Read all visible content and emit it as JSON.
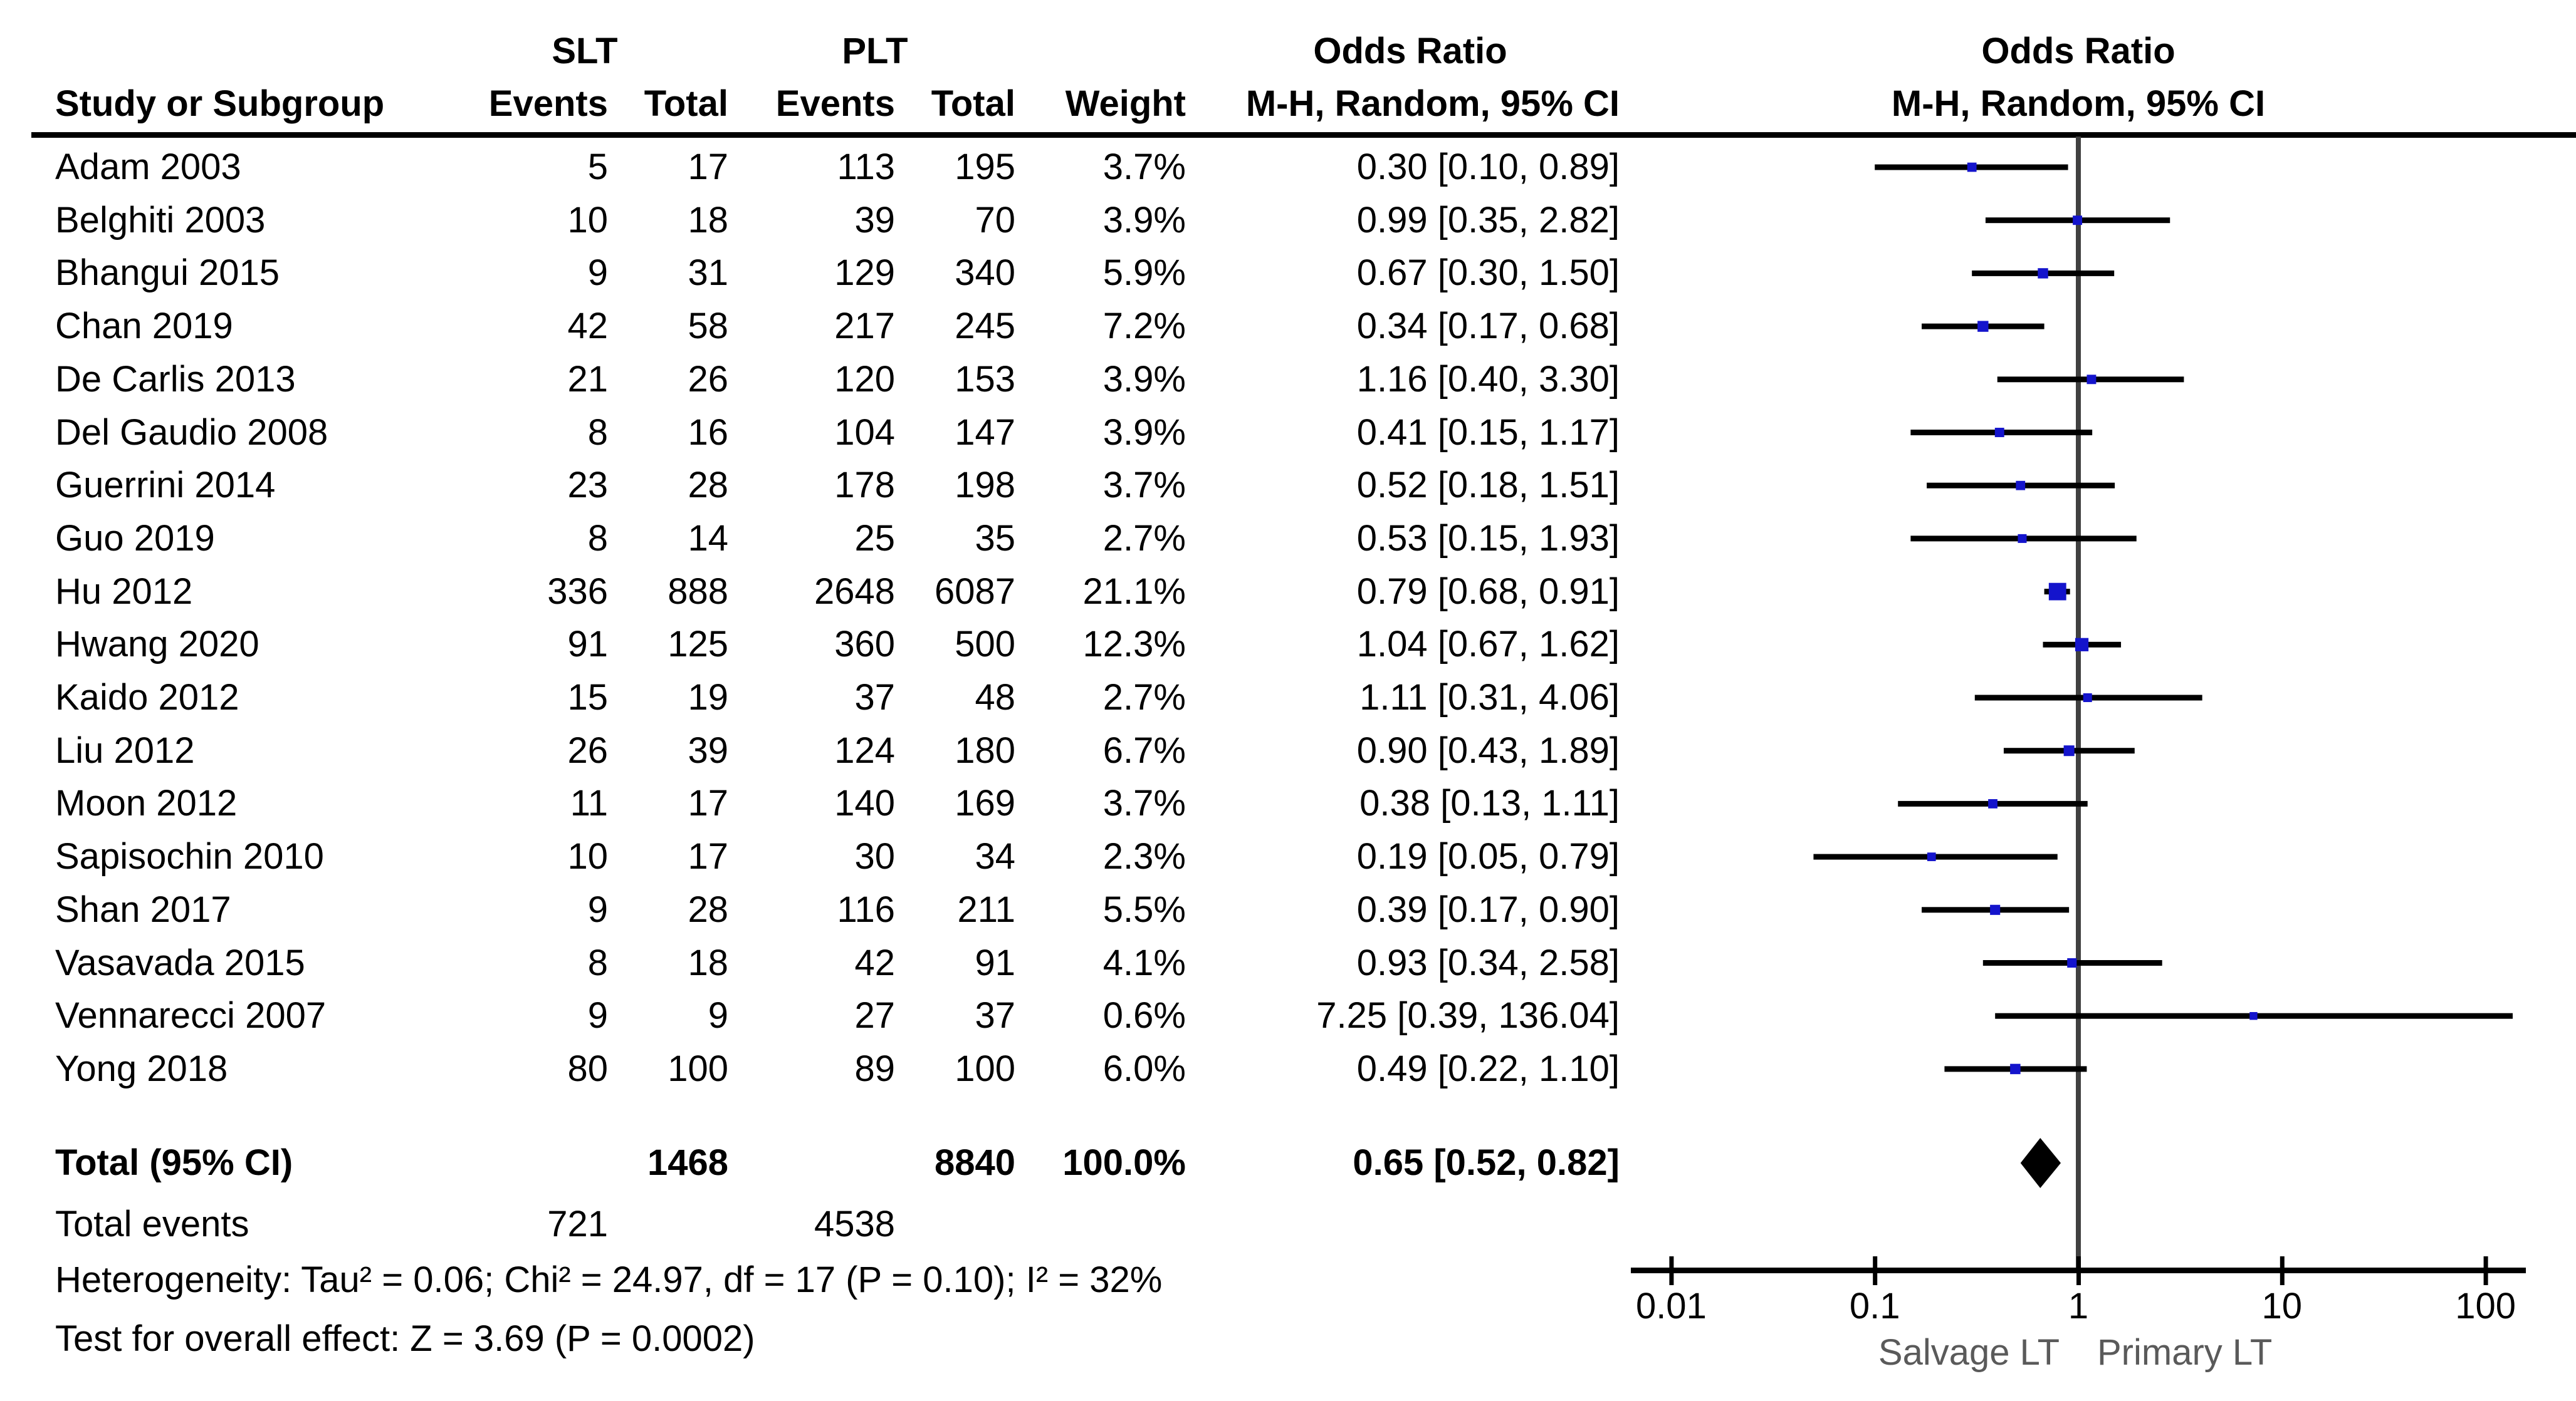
{
  "header": {
    "study_col": "Study or Subgroup",
    "group1": "SLT",
    "group2": "PLT",
    "events": "Events",
    "total": "Total",
    "weight": "Weight",
    "or_title": "Odds Ratio",
    "or_method": "M-H, Random, 95% CI",
    "plot_title": "Odds Ratio",
    "plot_method": "M-H, Random, 95% CI"
  },
  "colors": {
    "marker_blue": "#1414CC",
    "ci_line": "#000000",
    "diamond": "#000000",
    "axis_line": "#000000",
    "center_line": "#404040",
    "axis_label_gray": "#5a5a5a"
  },
  "studies": [
    {
      "name": "Adam 2003",
      "slt_events": "5",
      "slt_total": "17",
      "plt_events": "113",
      "plt_total": "195",
      "weight": "3.7%",
      "or_ci": "0.30 [0.10, 0.89]",
      "or": 0.3,
      "lo": 0.1,
      "hi": 0.89,
      "w": 3.7
    },
    {
      "name": "Belghiti 2003",
      "slt_events": "10",
      "slt_total": "18",
      "plt_events": "39",
      "plt_total": "70",
      "weight": "3.9%",
      "or_ci": "0.99 [0.35, 2.82]",
      "or": 0.99,
      "lo": 0.35,
      "hi": 2.82,
      "w": 3.9
    },
    {
      "name": "Bhangui 2015",
      "slt_events": "9",
      "slt_total": "31",
      "plt_events": "129",
      "plt_total": "340",
      "weight": "5.9%",
      "or_ci": "0.67 [0.30, 1.50]",
      "or": 0.67,
      "lo": 0.3,
      "hi": 1.5,
      "w": 5.9
    },
    {
      "name": "Chan 2019",
      "slt_events": "42",
      "slt_total": "58",
      "plt_events": "217",
      "plt_total": "245",
      "weight": "7.2%",
      "or_ci": "0.34 [0.17, 0.68]",
      "or": 0.34,
      "lo": 0.17,
      "hi": 0.68,
      "w": 7.2
    },
    {
      "name": "De Carlis 2013",
      "slt_events": "21",
      "slt_total": "26",
      "plt_events": "120",
      "plt_total": "153",
      "weight": "3.9%",
      "or_ci": "1.16 [0.40, 3.30]",
      "or": 1.16,
      "lo": 0.4,
      "hi": 3.3,
      "w": 3.9
    },
    {
      "name": "Del Gaudio 2008",
      "slt_events": "8",
      "slt_total": "16",
      "plt_events": "104",
      "plt_total": "147",
      "weight": "3.9%",
      "or_ci": "0.41 [0.15, 1.17]",
      "or": 0.41,
      "lo": 0.15,
      "hi": 1.17,
      "w": 3.9
    },
    {
      "name": "Guerrini 2014",
      "slt_events": "23",
      "slt_total": "28",
      "plt_events": "178",
      "plt_total": "198",
      "weight": "3.7%",
      "or_ci": "0.52 [0.18, 1.51]",
      "or": 0.52,
      "lo": 0.18,
      "hi": 1.51,
      "w": 3.7
    },
    {
      "name": "Guo 2019",
      "slt_events": "8",
      "slt_total": "14",
      "plt_events": "25",
      "plt_total": "35",
      "weight": "2.7%",
      "or_ci": "0.53 [0.15, 1.93]",
      "or": 0.53,
      "lo": 0.15,
      "hi": 1.93,
      "w": 2.7
    },
    {
      "name": "Hu 2012",
      "slt_events": "336",
      "slt_total": "888",
      "plt_events": "2648",
      "plt_total": "6087",
      "weight": "21.1%",
      "or_ci": "0.79 [0.68, 0.91]",
      "or": 0.79,
      "lo": 0.68,
      "hi": 0.91,
      "w": 21.1
    },
    {
      "name": "Hwang 2020",
      "slt_events": "91",
      "slt_total": "125",
      "plt_events": "360",
      "plt_total": "500",
      "weight": "12.3%",
      "or_ci": "1.04 [0.67, 1.62]",
      "or": 1.04,
      "lo": 0.67,
      "hi": 1.62,
      "w": 12.3
    },
    {
      "name": "Kaido 2012",
      "slt_events": "15",
      "slt_total": "19",
      "plt_events": "37",
      "plt_total": "48",
      "weight": "2.7%",
      "or_ci": "1.11 [0.31, 4.06]",
      "or": 1.11,
      "lo": 0.31,
      "hi": 4.06,
      "w": 2.7
    },
    {
      "name": "Liu 2012",
      "slt_events": "26",
      "slt_total": "39",
      "plt_events": "124",
      "plt_total": "180",
      "weight": "6.7%",
      "or_ci": "0.90 [0.43, 1.89]",
      "or": 0.9,
      "lo": 0.43,
      "hi": 1.89,
      "w": 6.7
    },
    {
      "name": "Moon 2012",
      "slt_events": "11",
      "slt_total": "17",
      "plt_events": "140",
      "plt_total": "169",
      "weight": "3.7%",
      "or_ci": "0.38 [0.13, 1.11]",
      "or": 0.38,
      "lo": 0.13,
      "hi": 1.11,
      "w": 3.7
    },
    {
      "name": "Sapisochin 2010",
      "slt_events": "10",
      "slt_total": "17",
      "plt_events": "30",
      "plt_total": "34",
      "weight": "2.3%",
      "or_ci": "0.19 [0.05, 0.79]",
      "or": 0.19,
      "lo": 0.05,
      "hi": 0.79,
      "w": 2.3
    },
    {
      "name": "Shan 2017",
      "slt_events": "9",
      "slt_total": "28",
      "plt_events": "116",
      "plt_total": "211",
      "weight": "5.5%",
      "or_ci": "0.39 [0.17, 0.90]",
      "or": 0.39,
      "lo": 0.17,
      "hi": 0.9,
      "w": 5.5
    },
    {
      "name": "Vasavada 2015",
      "slt_events": "8",
      "slt_total": "18",
      "plt_events": "42",
      "plt_total": "91",
      "weight": "4.1%",
      "or_ci": "0.93 [0.34, 2.58]",
      "or": 0.93,
      "lo": 0.34,
      "hi": 2.58,
      "w": 4.1
    },
    {
      "name": "Vennarecci 2007",
      "slt_events": "9",
      "slt_total": "9",
      "plt_events": "27",
      "plt_total": "37",
      "weight": "0.6%",
      "or_ci": "7.25 [0.39, 136.04]",
      "or": 7.25,
      "lo": 0.39,
      "hi": 136.04,
      "w": 0.6
    },
    {
      "name": "Yong 2018",
      "slt_events": "80",
      "slt_total": "100",
      "plt_events": "89",
      "plt_total": "100",
      "weight": "6.0%",
      "or_ci": "0.49 [0.22, 1.10]",
      "or": 0.49,
      "lo": 0.22,
      "hi": 1.1,
      "w": 6.0
    }
  ],
  "total_row": {
    "label": "Total (95% CI)",
    "slt_total": "1468",
    "plt_total": "8840",
    "weight": "100.0%",
    "or_ci": "0.65 [0.52, 0.82]",
    "or": 0.65,
    "lo": 0.52,
    "hi": 0.82
  },
  "total_events": {
    "label": "Total events",
    "slt": "721",
    "plt": "4538"
  },
  "heterogeneity": "Heterogeneity: Tau² = 0.06; Chi² = 24.97, df = 17 (P = 0.10); I² = 32%",
  "overall_effect": "Test for overall effect: Z = 3.69 (P = 0.0002)",
  "axis": {
    "tick_labels": [
      "0.01",
      "0.1",
      "1",
      "10",
      "100"
    ],
    "tick_values": [
      0.01,
      0.1,
      1,
      10,
      100
    ],
    "left_label": "Salvage LT",
    "right_label": "Primary LT"
  },
  "chart_data": {
    "type": "scatter",
    "subtype": "forest-plot-log-odds-ratio",
    "title": "Odds Ratio, M-H, Random, 95% CI (SLT vs PLT)",
    "x_scale": "log10",
    "x_range": [
      0.01,
      100
    ],
    "x_ticks": [
      0.01,
      0.1,
      1,
      10,
      100
    ],
    "favors_left": "Salvage LT",
    "favors_right": "Primary LT",
    "series": [
      {
        "name": "Adam 2003",
        "or": 0.3,
        "ci": [
          0.1,
          0.89
        ],
        "weight_pct": 3.7
      },
      {
        "name": "Belghiti 2003",
        "or": 0.99,
        "ci": [
          0.35,
          2.82
        ],
        "weight_pct": 3.9
      },
      {
        "name": "Bhangui 2015",
        "or": 0.67,
        "ci": [
          0.3,
          1.5
        ],
        "weight_pct": 5.9
      },
      {
        "name": "Chan 2019",
        "or": 0.34,
        "ci": [
          0.17,
          0.68
        ],
        "weight_pct": 7.2
      },
      {
        "name": "De Carlis 2013",
        "or": 1.16,
        "ci": [
          0.4,
          3.3
        ],
        "weight_pct": 3.9
      },
      {
        "name": "Del Gaudio 2008",
        "or": 0.41,
        "ci": [
          0.15,
          1.17
        ],
        "weight_pct": 3.9
      },
      {
        "name": "Guerrini 2014",
        "or": 0.52,
        "ci": [
          0.18,
          1.51
        ],
        "weight_pct": 3.7
      },
      {
        "name": "Guo 2019",
        "or": 0.53,
        "ci": [
          0.15,
          1.93
        ],
        "weight_pct": 2.7
      },
      {
        "name": "Hu 2012",
        "or": 0.79,
        "ci": [
          0.68,
          0.91
        ],
        "weight_pct": 21.1
      },
      {
        "name": "Hwang 2020",
        "or": 1.04,
        "ci": [
          0.67,
          1.62
        ],
        "weight_pct": 12.3
      },
      {
        "name": "Kaido 2012",
        "or": 1.11,
        "ci": [
          0.31,
          4.06
        ],
        "weight_pct": 2.7
      },
      {
        "name": "Liu 2012",
        "or": 0.9,
        "ci": [
          0.43,
          1.89
        ],
        "weight_pct": 6.7
      },
      {
        "name": "Moon 2012",
        "or": 0.38,
        "ci": [
          0.13,
          1.11
        ],
        "weight_pct": 3.7
      },
      {
        "name": "Sapisochin 2010",
        "or": 0.19,
        "ci": [
          0.05,
          0.79
        ],
        "weight_pct": 2.3
      },
      {
        "name": "Shan 2017",
        "or": 0.39,
        "ci": [
          0.17,
          0.9
        ],
        "weight_pct": 5.5
      },
      {
        "name": "Vasavada 2015",
        "or": 0.93,
        "ci": [
          0.34,
          2.58
        ],
        "weight_pct": 4.1
      },
      {
        "name": "Vennarecci 2007",
        "or": 7.25,
        "ci": [
          0.39,
          136.04
        ],
        "weight_pct": 0.6
      },
      {
        "name": "Yong 2018",
        "or": 0.49,
        "ci": [
          0.22,
          1.1
        ],
        "weight_pct": 6.0
      }
    ],
    "summary": {
      "name": "Total (95% CI)",
      "or": 0.65,
      "ci": [
        0.52,
        0.82
      ],
      "weight_pct": 100.0,
      "heterogeneity": "Tau² = 0.06; Chi² = 24.97, df = 17 (P = 0.10); I² = 32%",
      "overall_effect": "Z = 3.69 (P = 0.0002)"
    }
  }
}
